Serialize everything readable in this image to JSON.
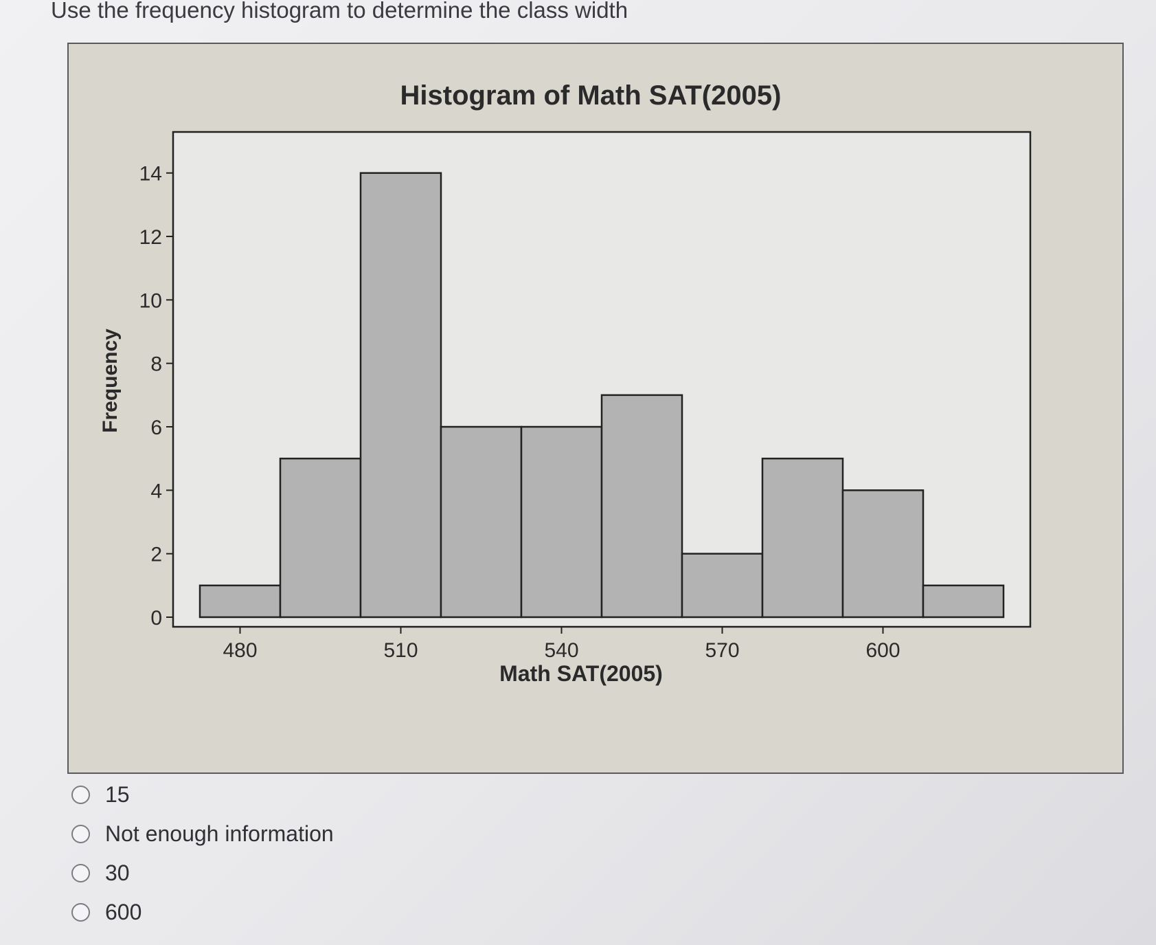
{
  "question": {
    "text": "Use the frequency histogram to determine the class width"
  },
  "chart_data": {
    "type": "bar",
    "title": "Histogram of Math SAT(2005)",
    "xlabel": "Math SAT(2005)",
    "ylabel": "Frequency",
    "bin_centers": [
      480,
      495,
      510,
      525,
      540,
      555,
      570,
      585,
      600,
      615
    ],
    "values": [
      1,
      5,
      14,
      6,
      6,
      7,
      2,
      5,
      4,
      1
    ],
    "bin_width": 15,
    "xlim": [
      467.5,
      627.5
    ],
    "ylim": [
      0,
      15
    ],
    "x_ticks": [
      "480",
      "510",
      "540",
      "570",
      "600"
    ],
    "y_ticks": [
      "0",
      "2",
      "4",
      "6",
      "8",
      "10",
      "12",
      "14"
    ],
    "grid": false,
    "bar_color": "#b3b3b3",
    "plot_background": "#e8e8e6",
    "figure_background": "#d9d6cd"
  },
  "options": [
    {
      "label": "15"
    },
    {
      "label": "Not enough information"
    },
    {
      "label": "30"
    },
    {
      "label": "600"
    }
  ]
}
